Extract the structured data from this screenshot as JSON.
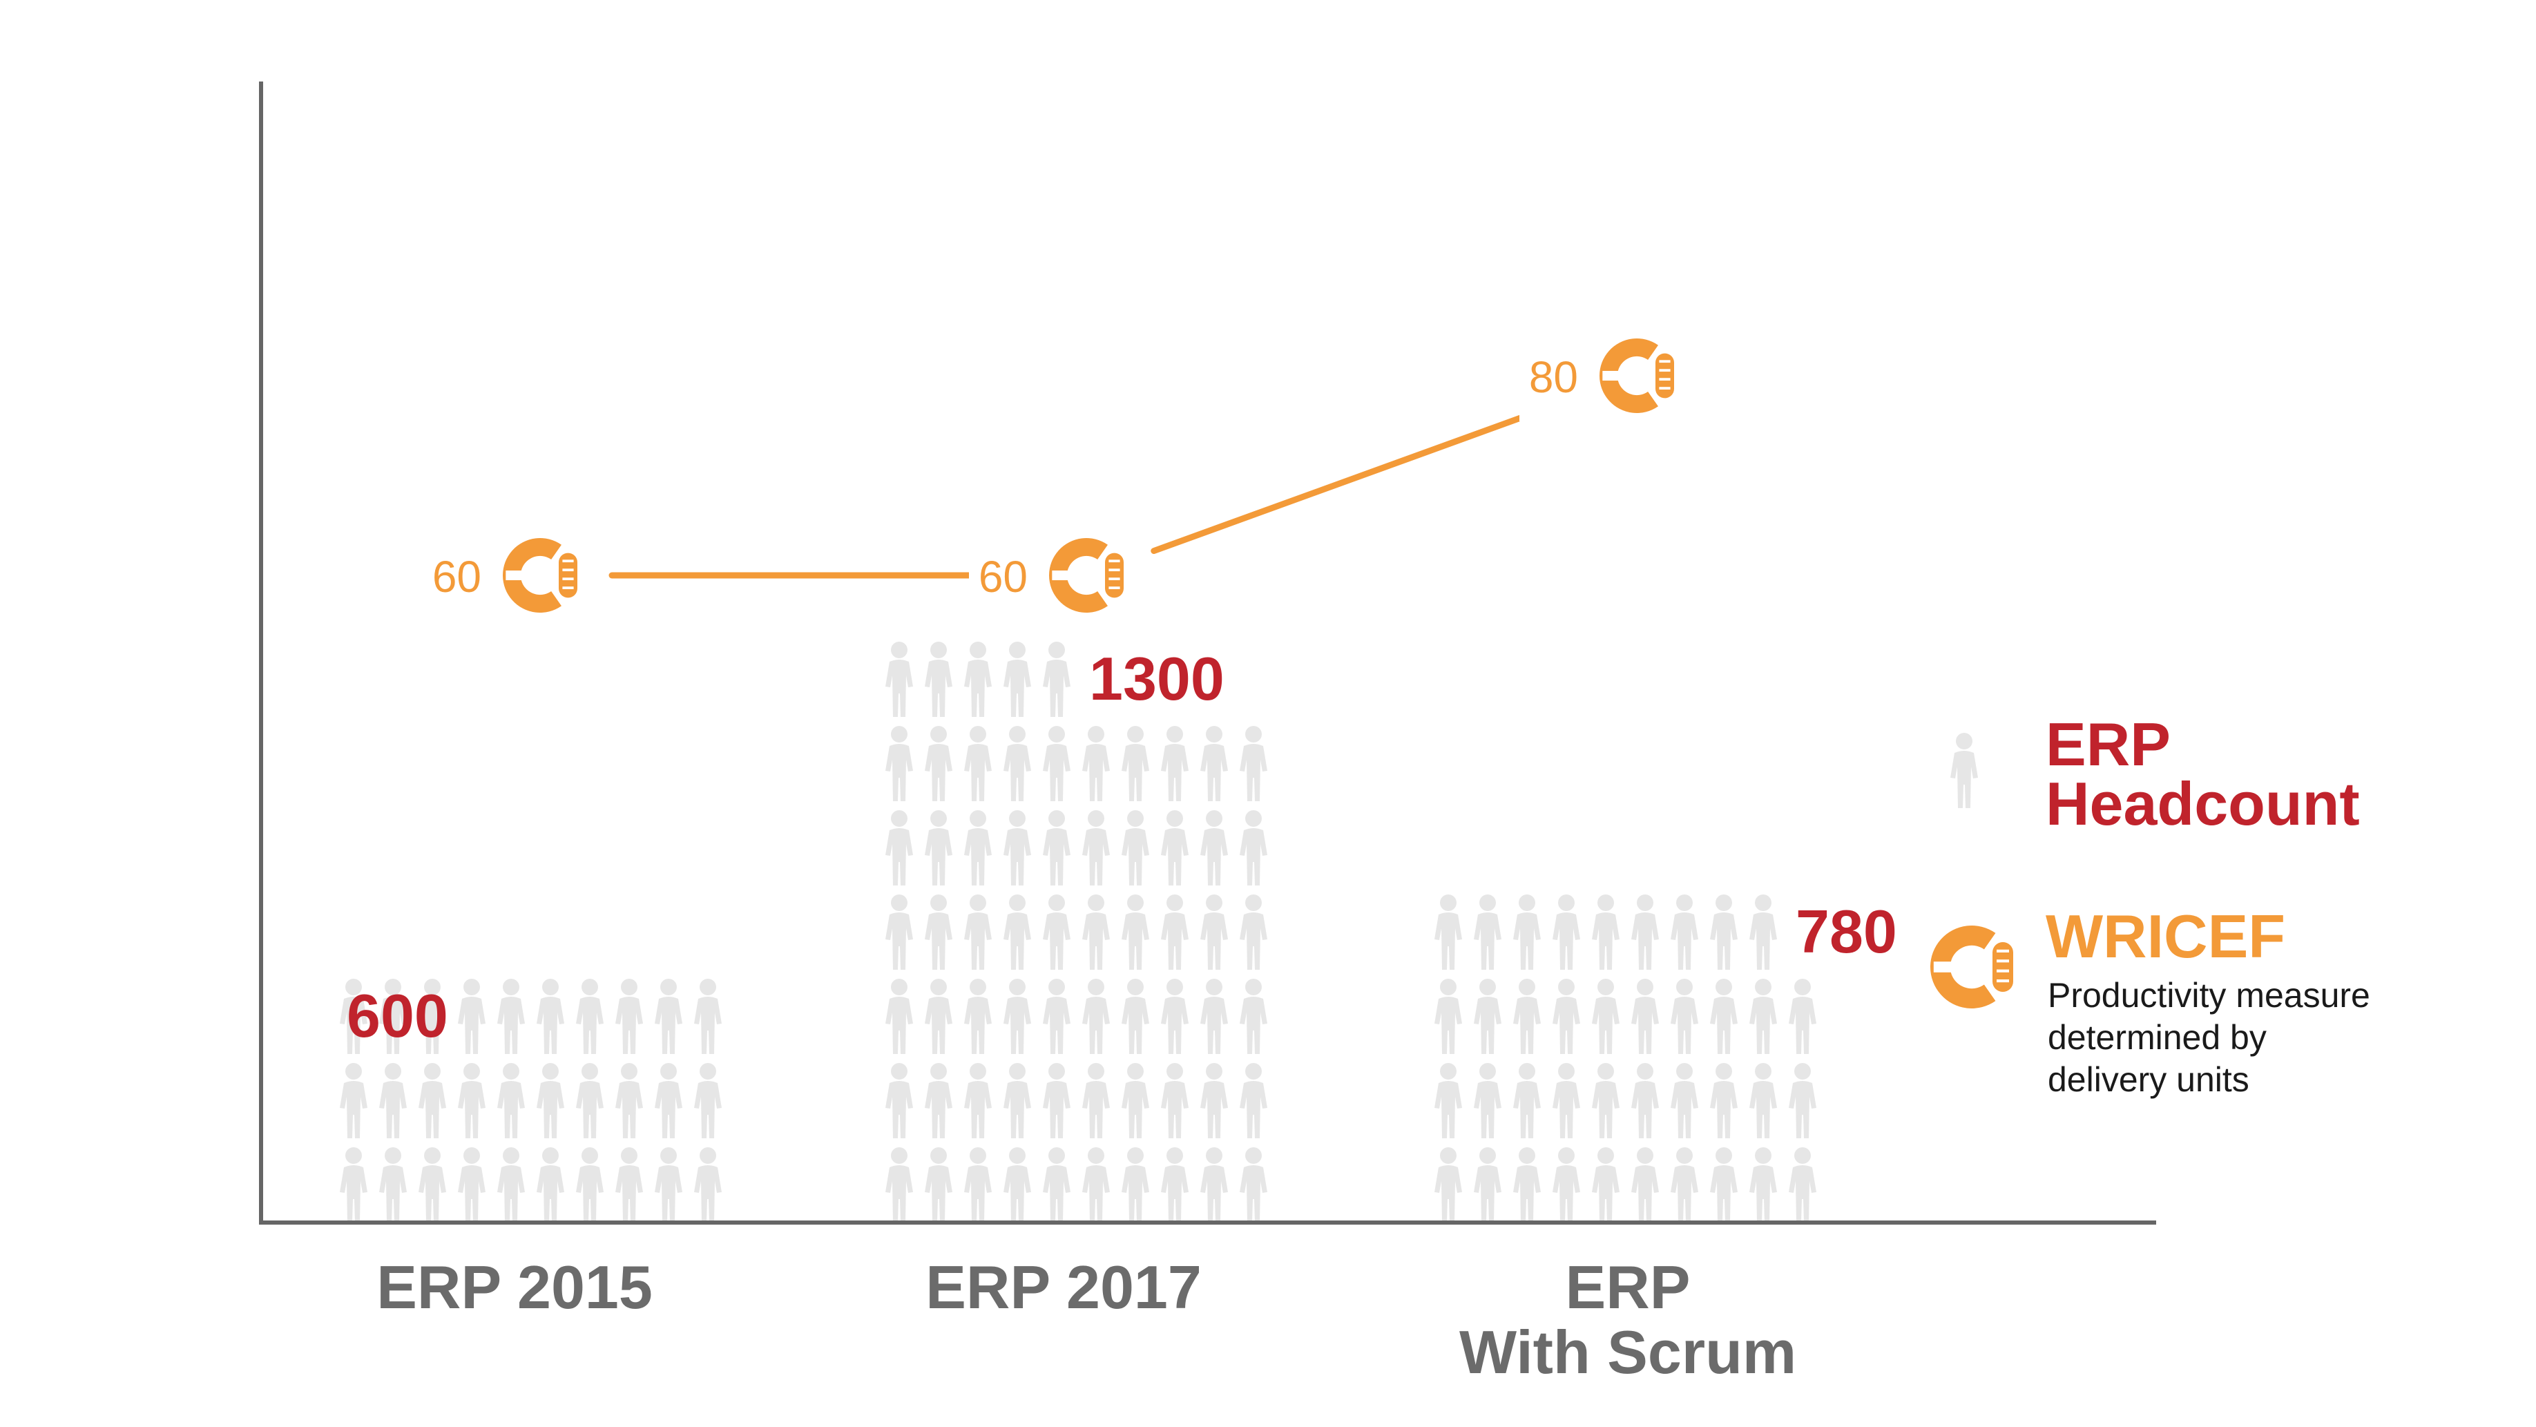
{
  "chart_data": {
    "type": "bar",
    "categories": [
      [
        "ERP 2015"
      ],
      [
        "ERP 2017"
      ],
      [
        "ERP",
        "With Scrum"
      ]
    ],
    "series": [
      {
        "name": "ERP Headcount",
        "values": [
          600,
          1300,
          780
        ],
        "labels": [
          "600",
          "1300",
          "780"
        ],
        "color": "#c0232c",
        "icon": "person-icon",
        "icon_color": "#e6e6e6"
      },
      {
        "name": "WRICEF",
        "values": [
          60,
          60,
          80
        ],
        "labels": [
          "60",
          "60",
          "80"
        ],
        "color": "#f39a38",
        "icon": "wricef-icon",
        "type": "line"
      }
    ],
    "legend": {
      "placement": "right",
      "items": [
        {
          "title": [
            "ERP",
            "Headcount"
          ],
          "icon": "person-icon"
        },
        {
          "title": [
            "WRICEF"
          ],
          "icon": "wricef-icon",
          "description": [
            "Productivity measure",
            "determined by",
            "delivery units"
          ]
        }
      ]
    },
    "axis_color": "#666666",
    "grid": false
  }
}
